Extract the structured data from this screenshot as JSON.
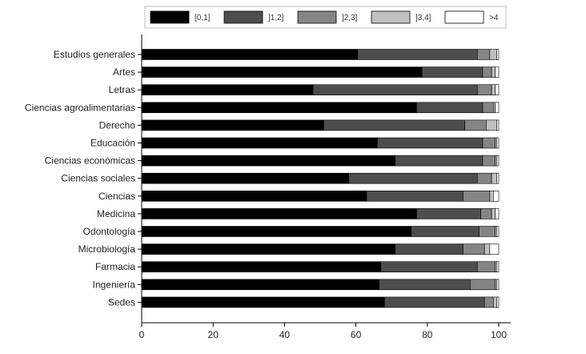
{
  "chart_data": {
    "type": "bar",
    "orientation": "horizontal",
    "stacked": true,
    "title": "",
    "xlabel": "",
    "ylabel": "",
    "xlim": [
      0,
      100
    ],
    "xticks": [
      "0",
      "20",
      "40",
      "60",
      "80",
      "100"
    ],
    "grid": false,
    "legend_position": "top",
    "categories": [
      "Estudios generales",
      "Artes",
      "Letras",
      "Ciencias agroalimentarias",
      "Derecho",
      "Educación",
      "Ciencias económicas",
      "Ciencias sociales",
      "Ciencias",
      "Medicina",
      "Odontología",
      "Microbiología",
      "Farmacia",
      "Ingeniería",
      "Sedes"
    ],
    "series": [
      {
        "name": "[0,1]",
        "color": "#000000",
        "values": [
          60.5,
          78.5,
          48.0,
          77.0,
          51.0,
          66.0,
          71.0,
          58.0,
          63.0,
          77.0,
          75.5,
          71.0,
          67.0,
          66.5,
          68.0
        ]
      },
      {
        "name": "]1,2]",
        "color": "#4d4d4d",
        "values": [
          33.5,
          17.0,
          46.0,
          18.5,
          39.5,
          29.5,
          24.5,
          36.0,
          27.0,
          18.0,
          19.0,
          19.0,
          27.0,
          25.5,
          28.0
        ]
      },
      {
        "name": "]2,3]",
        "color": "#858585",
        "values": [
          3.5,
          2.5,
          4.0,
          3.0,
          6.0,
          3.5,
          3.5,
          4.0,
          7.5,
          3.0,
          4.5,
          6.0,
          5.0,
          7.0,
          2.5
        ]
      },
      {
        "name": "]3,4]",
        "color": "#c0c0c0",
        "values": [
          2.0,
          1.0,
          1.0,
          0.5,
          3.0,
          0.5,
          0.5,
          1.5,
          1.0,
          1.0,
          0.5,
          1.5,
          0.5,
          0.5,
          1.0
        ]
      },
      {
        "name": ">4",
        "color": "#ffffff",
        "values": [
          0.5,
          1.0,
          1.0,
          1.0,
          0.5,
          0.5,
          0.5,
          0.5,
          1.5,
          1.0,
          0.5,
          2.5,
          0.5,
          0.5,
          0.5
        ]
      }
    ]
  }
}
